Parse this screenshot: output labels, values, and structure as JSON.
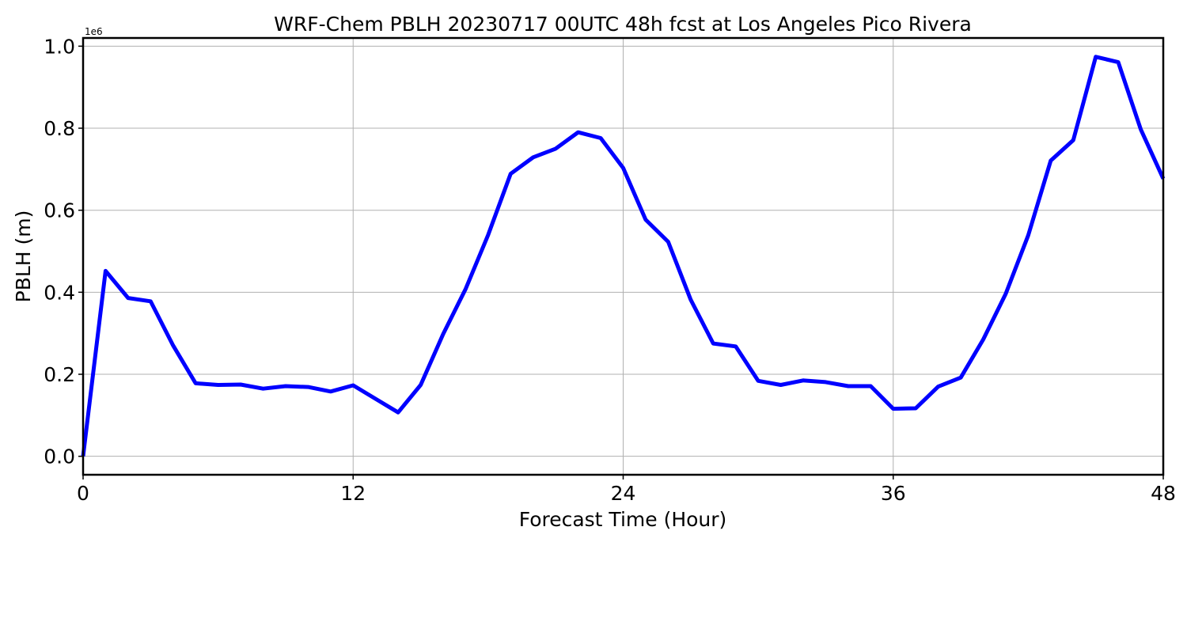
{
  "chart_data": {
    "type": "line",
    "title": "WRF-Chem PBLH  20230717 00UTC 48h fcst at Los Angeles Pico Rivera",
    "xlabel": "Forecast Time (Hour)",
    "ylabel": "PBLH  (m)",
    "y_offset_label": "1e6",
    "xlim": [
      0,
      48
    ],
    "ylim": [
      -0.045,
      1.02
    ],
    "xticks": [
      0,
      12,
      24,
      36,
      48
    ],
    "xtick_labels": [
      "0",
      "12",
      "24",
      "36",
      "48"
    ],
    "yticks": [
      0.0,
      0.2,
      0.4,
      0.6,
      0.8,
      1.0
    ],
    "ytick_labels": [
      "0.0",
      "0.2",
      "0.4",
      "0.6",
      "0.8",
      "1.0"
    ],
    "grid": true,
    "series": [
      {
        "color": "#0000ff",
        "x": [
          0,
          1,
          2,
          3,
          4,
          5,
          6,
          7,
          8,
          9,
          10,
          11,
          12,
          13,
          14,
          15,
          16,
          17,
          18,
          19,
          20,
          21,
          22,
          23,
          24,
          25,
          26,
          27,
          28,
          29,
          30,
          31,
          32,
          33,
          34,
          35,
          36,
          37,
          38,
          39,
          40,
          41,
          42,
          43,
          44,
          45,
          46,
          47,
          48
        ],
        "values": [
          0.0,
          0.452,
          0.386,
          0.378,
          0.27,
          0.178,
          0.174,
          0.175,
          0.165,
          0.171,
          0.169,
          0.158,
          0.173,
          0.14,
          0.107,
          0.174,
          0.298,
          0.408,
          0.54,
          0.689,
          0.729,
          0.75,
          0.79,
          0.776,
          0.703,
          0.577,
          0.523,
          0.382,
          0.275,
          0.268,
          0.184,
          0.174,
          0.185,
          0.181,
          0.171,
          0.171,
          0.116,
          0.117,
          0.17,
          0.192,
          0.285,
          0.396,
          0.539,
          0.721,
          0.771,
          0.974,
          0.961,
          0.797,
          0.677
        ]
      }
    ]
  }
}
